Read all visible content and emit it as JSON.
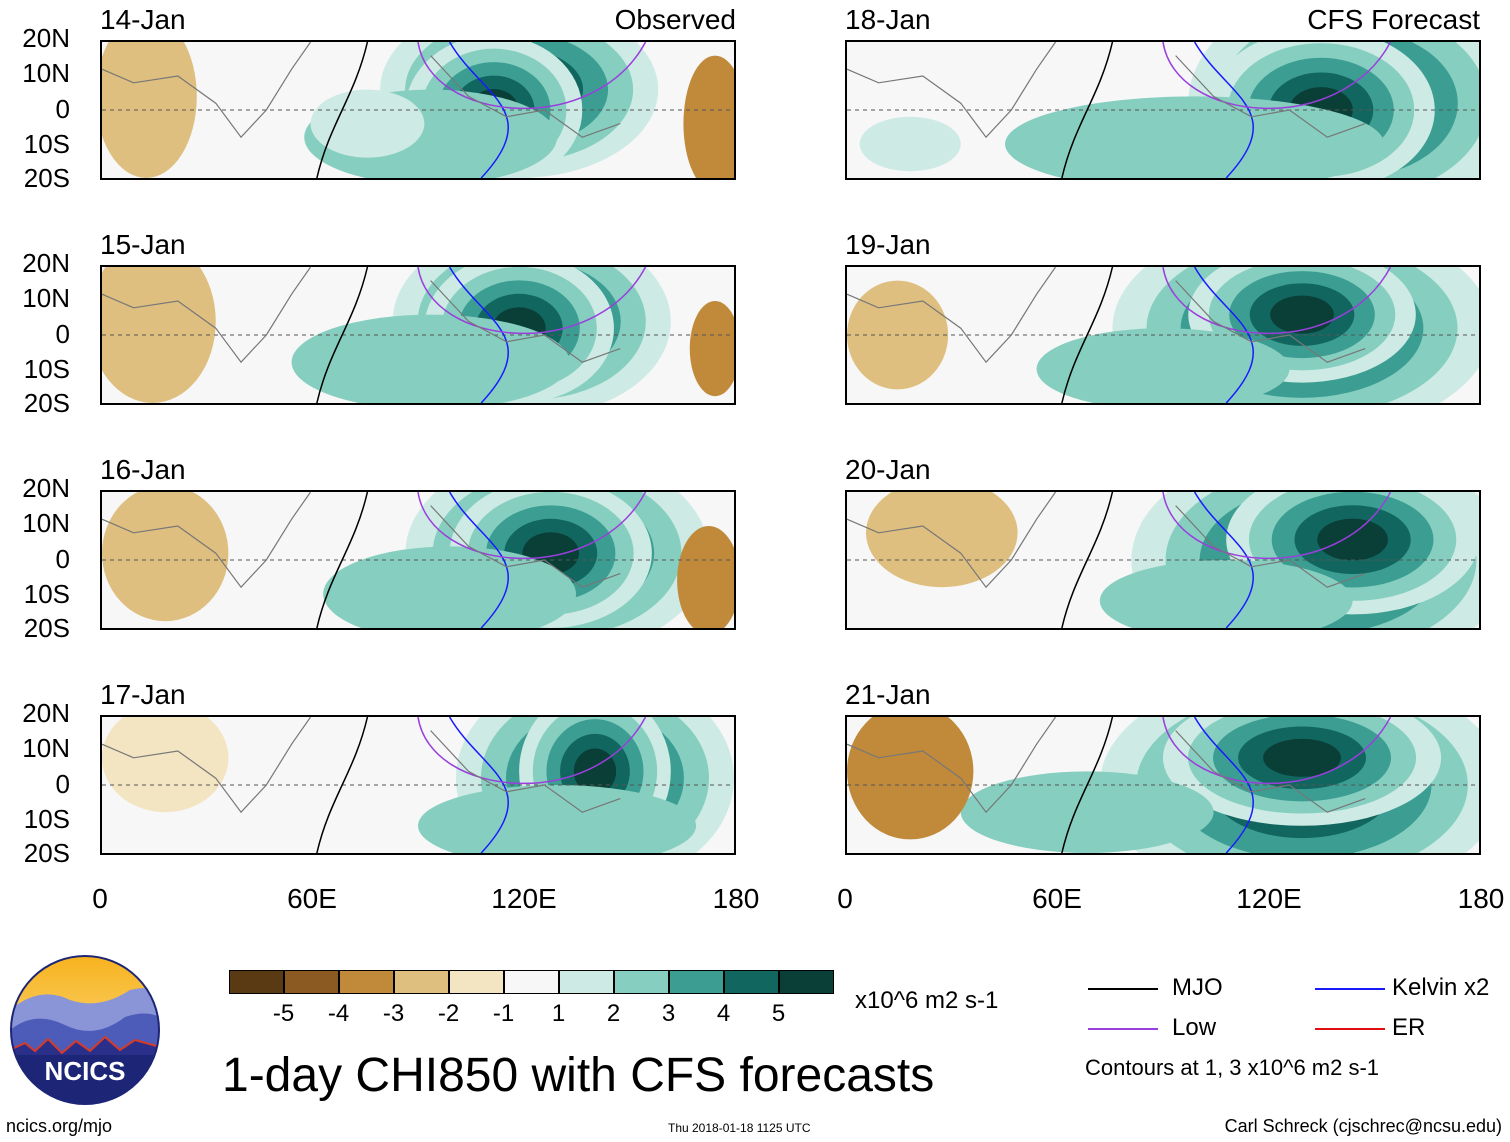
{
  "panels": {
    "left": {
      "tag": "Observed",
      "dates": [
        "14-Jan",
        "15-Jan",
        "16-Jan",
        "17-Jan"
      ]
    },
    "right": {
      "tag": "CFS Forecast",
      "dates": [
        "18-Jan",
        "19-Jan",
        "20-Jan",
        "21-Jan"
      ]
    },
    "lat_labels": [
      "20N",
      "10N",
      "0",
      "10S",
      "20S"
    ],
    "lon_labels": [
      "0",
      "60E",
      "120E",
      "180"
    ]
  },
  "colorbar": {
    "colors": [
      "#5a3a12",
      "#8a5a22",
      "#c08a3a",
      "#dfbf80",
      "#f3e4c2",
      "#f7f7f7",
      "#cdebe4",
      "#86cfc0",
      "#3c9e92",
      "#11675f",
      "#0a3f38"
    ],
    "ticks": [
      "-5",
      "-4",
      "-3",
      "-2",
      "-1",
      "1",
      "2",
      "3",
      "4",
      "5"
    ],
    "units": "x10^6 m2 s-1"
  },
  "title": "1-day CHI850 with CFS forecasts",
  "legend": {
    "items": [
      {
        "label": "MJO",
        "color": "#000000"
      },
      {
        "label": "Kelvin x2",
        "color": "#1a1aff"
      },
      {
        "label": "Low",
        "color": "#9a3fdc"
      },
      {
        "label": "ER",
        "color": "#e01010"
      }
    ],
    "note": "Contours at 1, 3 x10^6 m2 s-1"
  },
  "logo": {
    "text": "NCICS"
  },
  "footer": {
    "left": "ncics.org/mjo",
    "center": "Thu 2018-01-18 1125 UTC",
    "right": "Carl Schreck (cjschrec@ncsu.edu)"
  }
}
